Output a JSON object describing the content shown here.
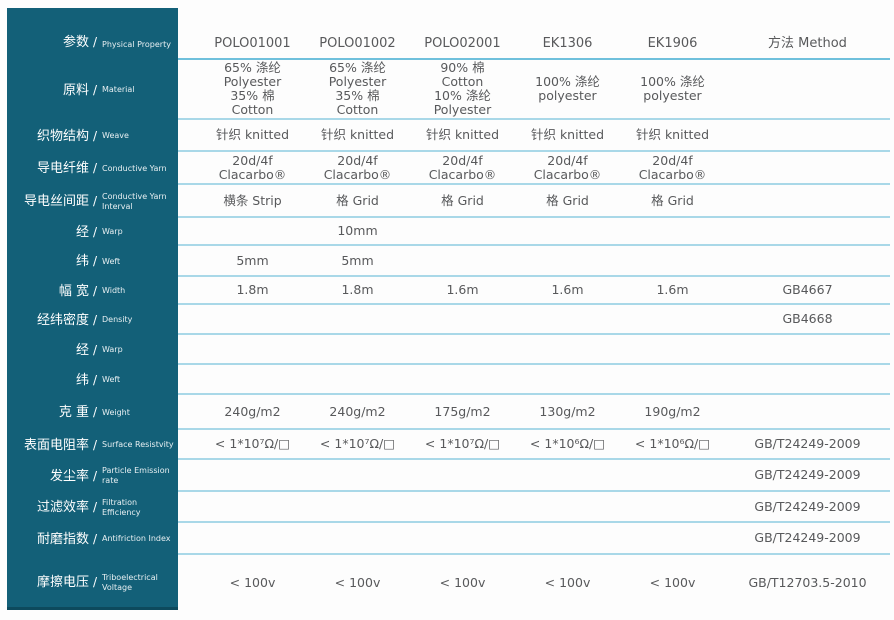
{
  "colors": {
    "sidebar_teal": "#136078",
    "sidebar_edge": "#0d4a5d",
    "line_light": "#a9d8e8",
    "line_dark": "#6fc0dc",
    "text_gray": "#58595b",
    "label_text": "#ffffff",
    "page_bg": "#fdfdfd"
  },
  "sidebar": {
    "separator": "/",
    "rows": [
      {
        "zh": "参数",
        "en": "Physical Property"
      },
      {
        "zh": "原料",
        "en": "Material"
      },
      {
        "zh": "织物结构",
        "en": "Weave"
      },
      {
        "zh": "导电纤维",
        "en": "Conductive Yarn"
      },
      {
        "zh": "导电丝间距",
        "en": "Conductive Yarn\nInterval"
      },
      {
        "zh": "经",
        "en": "Warp"
      },
      {
        "zh": "纬",
        "en": "Weft"
      },
      {
        "zh": "幅 宽",
        "en": "Width"
      },
      {
        "zh": "经纬密度",
        "en": "Density"
      },
      {
        "zh": "经",
        "en": "Warp"
      },
      {
        "zh": "纬",
        "en": "Weft"
      },
      {
        "zh": "克 重",
        "en": "Weight"
      },
      {
        "zh": "表面电阻率",
        "en": "Surface Resistvity"
      },
      {
        "zh": "发尘率",
        "en": "Particle Emission\nrate"
      },
      {
        "zh": "过滤效率",
        "en": "Filtration Efficiency"
      },
      {
        "zh": "耐磨指数",
        "en": "Antifriction Index"
      },
      {
        "zh": "摩擦电压",
        "en": "Triboelectrical\nVoltage"
      }
    ]
  },
  "table": {
    "columns": [
      "POLO01001",
      "POLO01002",
      "POLO02001",
      "EK1306",
      "EK1906"
    ],
    "method_header": "方法 Method",
    "rows": [
      {
        "key": "material",
        "cells": [
          "65% 涤纶\nPolyester\n35% 棉\nCotton",
          "65% 涤纶\nPolyester\n35% 棉\nCotton",
          "90% 棉\nCotton\n10% 涤纶\nPolyester",
          "100% 涤纶\npolyester",
          "100% 涤纶\npolyester",
          ""
        ]
      },
      {
        "key": "weave",
        "cells": [
          "针织 knitted",
          "针织 knitted",
          "针织 knitted",
          "针织 knitted",
          "针织 knitted",
          ""
        ]
      },
      {
        "key": "conductive-yarn",
        "cells": [
          "20d/4f\nClacarbo®",
          "20d/4f\nClacarbo®",
          "20d/4f\nClacarbo®",
          "20d/4f\nClacarbo®",
          "20d/4f\nClacarbo®",
          ""
        ]
      },
      {
        "key": "conductive-yarn-interval",
        "cells": [
          "横条 Strip",
          "格 Grid",
          "格 Grid",
          "格 Grid",
          "格 Grid",
          ""
        ]
      },
      {
        "key": "warp",
        "cells": [
          "",
          "10mm",
          "",
          "",
          "",
          ""
        ]
      },
      {
        "key": "weft",
        "cells": [
          "5mm",
          "5mm",
          "",
          "",
          "",
          ""
        ]
      },
      {
        "key": "width",
        "cells": [
          "1.8m",
          "1.8m",
          "1.6m",
          "1.6m",
          "1.6m",
          "GB4667"
        ]
      },
      {
        "key": "density",
        "cells": [
          "",
          "",
          "",
          "",
          "",
          "GB4668"
        ]
      },
      {
        "key": "warp-2",
        "cells": [
          "",
          "",
          "",
          "",
          "",
          ""
        ]
      },
      {
        "key": "weft-2",
        "cells": [
          "",
          "",
          "",
          "",
          "",
          ""
        ]
      },
      {
        "key": "weight",
        "cells": [
          "240g/m2",
          "240g/m2",
          "175g/m2",
          "130g/m2",
          "190g/m2",
          ""
        ]
      },
      {
        "key": "surface-resistivity",
        "cells": [
          "< 1*10⁷Ω/□",
          "< 1*10⁷Ω/□",
          "< 1*10⁷Ω/□",
          "< 1*10⁶Ω/□",
          "< 1*10⁶Ω/□",
          "GB/T24249-2009"
        ]
      },
      {
        "key": "particle-emission-rate",
        "cells": [
          "",
          "",
          "",
          "",
          "",
          "GB/T24249-2009"
        ]
      },
      {
        "key": "filtration-efficiency",
        "cells": [
          "",
          "",
          "",
          "",
          "",
          "GB/T24249-2009"
        ]
      },
      {
        "key": "antifriction-index",
        "cells": [
          "",
          "",
          "",
          "",
          "",
          "GB/T24249-2009"
        ]
      },
      {
        "key": "triboelectrical-voltage",
        "cells": [
          "< 100v",
          "< 100v",
          "< 100v",
          "< 100v",
          "< 100v",
          "GB/T12703.5-2010"
        ]
      }
    ]
  }
}
